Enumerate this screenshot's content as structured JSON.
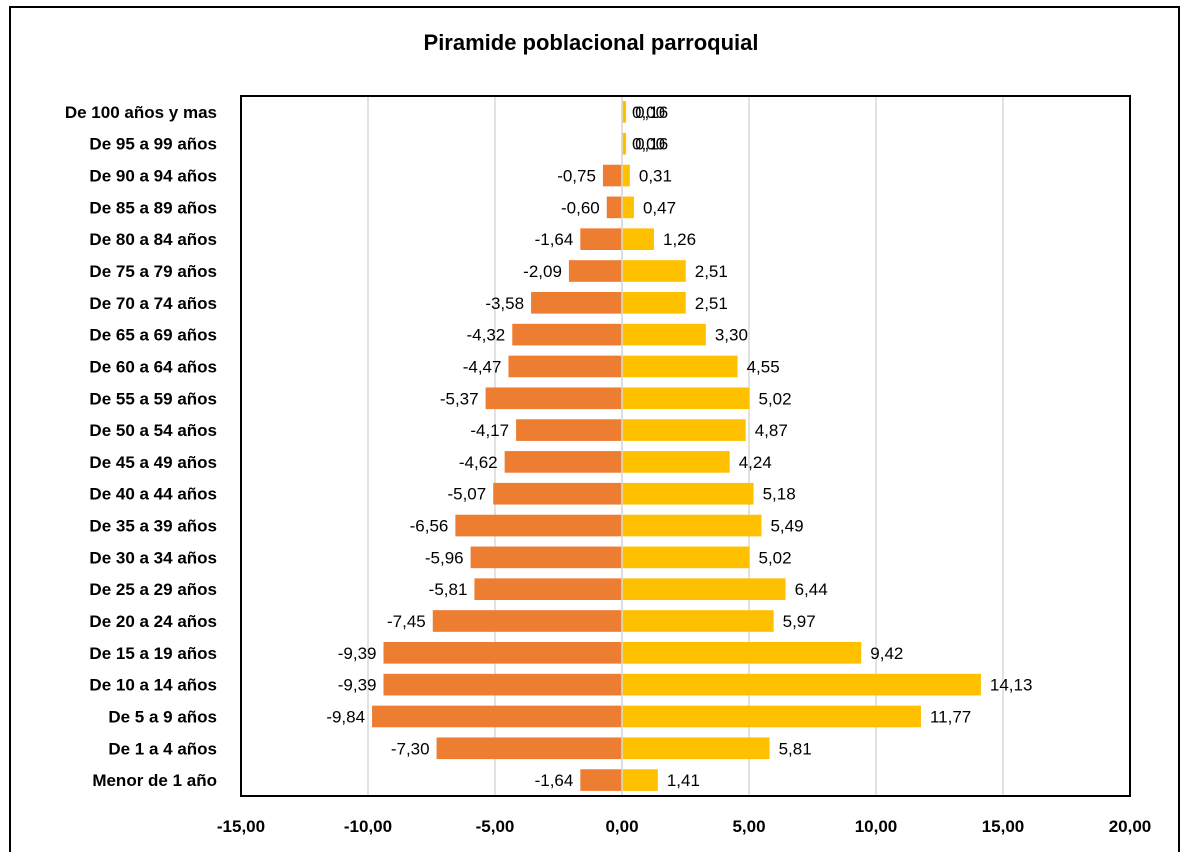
{
  "chart_data": {
    "type": "bar",
    "orientation": "horizontal",
    "title": "Piramide poblacional parroquial",
    "categories": [
      "Menor de 1 año",
      "De 1 a 4 años",
      "De 5 a 9 años",
      "De 10 a 14 años",
      "De 15 a 19 años",
      "De 20 a 24 años",
      "De 25 a 29 años",
      "De 30 a 34 años",
      "De 35 a 39 años",
      "De 40 a 44 años",
      "De 45 a 49 años",
      "De 50 a 54 años",
      "De 55 a 59 años",
      "De 60 a 64 años",
      "De 65 a 69 años",
      "De 70 a 74 años",
      "De 75 a 79 años",
      "De 80 a 84 años",
      "De 85 a 89 años",
      "De 90 a 94 años",
      "De 95 a 99 años",
      "De 100 años y mas"
    ],
    "series": [
      {
        "color": "#ED7D31",
        "values": [
          -1.64,
          -7.3,
          -9.84,
          -9.39,
          -9.39,
          -7.45,
          -5.81,
          -5.96,
          -6.56,
          -5.07,
          -4.62,
          -4.17,
          -5.37,
          -4.47,
          -4.32,
          -3.58,
          -2.09,
          -1.64,
          -0.6,
          -0.75,
          0.0,
          0.0
        ]
      },
      {
        "color": "#FFC000",
        "values": [
          1.41,
          5.81,
          11.77,
          14.13,
          9.42,
          5.97,
          6.44,
          5.02,
          5.49,
          5.18,
          4.24,
          4.87,
          5.02,
          4.55,
          3.3,
          2.51,
          2.51,
          1.26,
          0.47,
          0.31,
          0.16,
          0.16
        ]
      }
    ],
    "data_labels_neg": [
      "-1,64",
      "-7,30",
      "-9,84",
      "-9,39",
      "-9,39",
      "-7,45",
      "-5,81",
      "-5,96",
      "-6,56",
      "-5,07",
      "-4,62",
      "-4,17",
      "-5,37",
      "-4,47",
      "-4,32",
      "-3,58",
      "-2,09",
      "-1,64",
      "-0,60",
      "-0,75",
      "0,00",
      "0,00"
    ],
    "data_labels_pos": [
      "1,41",
      "5,81",
      "11,77",
      "14,13",
      "9,42",
      "5,97",
      "6,44",
      "5,02",
      "5,49",
      "5,18",
      "4,24",
      "4,87",
      "5,02",
      "4,55",
      "3,30",
      "2,51",
      "2,51",
      "1,26",
      "0,47",
      "0,31",
      "0,16",
      "0,16"
    ],
    "xlim": [
      -15,
      20
    ],
    "x_ticks": [
      -15,
      -10,
      -5,
      0,
      5,
      10,
      15,
      20
    ],
    "x_tick_labels": [
      "-15,00",
      "-10,00",
      "-5,00",
      "0,00",
      "5,00",
      "10,00",
      "15,00",
      "20,00"
    ],
    "grid": "vertical",
    "legend": "none",
    "gridline_color": "#D9D9D9"
  }
}
